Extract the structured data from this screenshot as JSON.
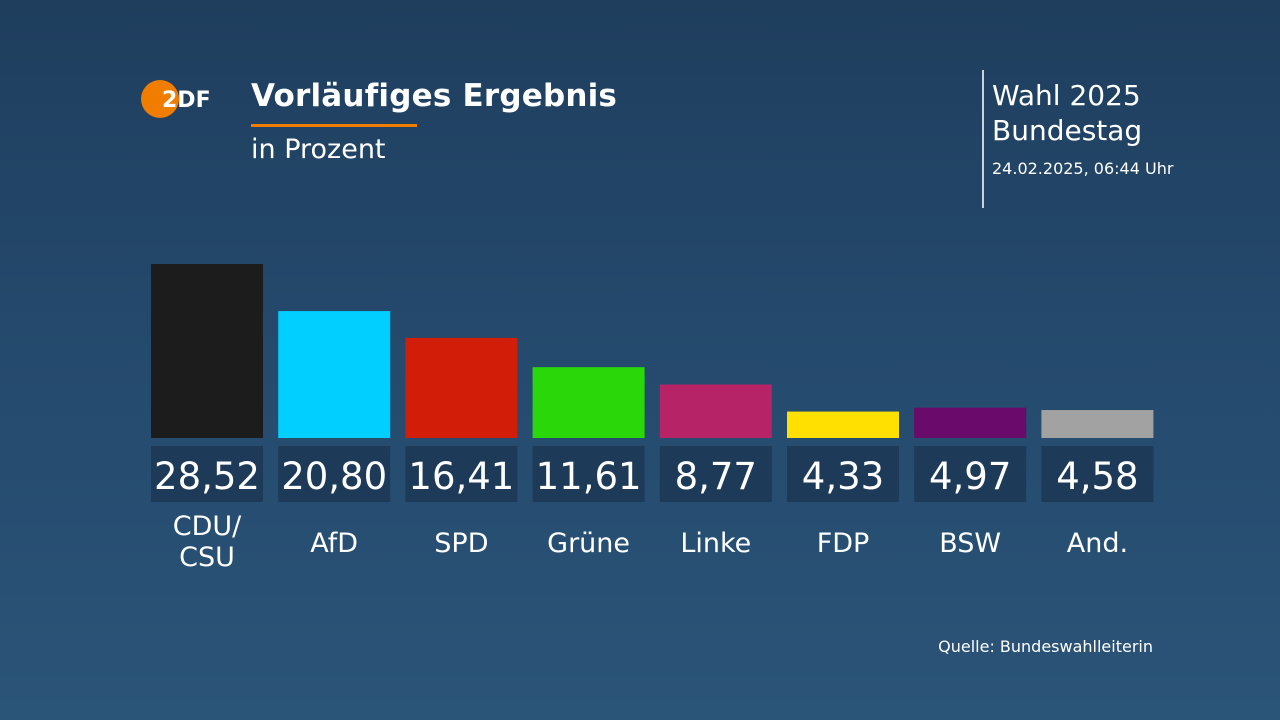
{
  "header": {
    "logo_text": "2DF",
    "title": "Vorläufiges Ergebnis",
    "subtitle": "in Prozent",
    "election_line1": "Wahl 2025",
    "election_line2": "Bundestag",
    "timestamp": "24.02.2025, 06:44 Uhr"
  },
  "footer": {
    "source": "Quelle: Bundeswahlleiterin"
  },
  "colors": {
    "accent": "#f07d00",
    "value_box": "#1d3a58"
  },
  "chart_data": {
    "type": "bar",
    "title": "Vorläufiges Ergebnis",
    "subtitle": "in Prozent",
    "categories": [
      "CDU/\nCSU",
      "AfD",
      "SPD",
      "Grüne",
      "Linke",
      "FDP",
      "BSW",
      "And."
    ],
    "values": [
      28.52,
      20.8,
      16.41,
      11.61,
      8.77,
      4.33,
      4.97,
      4.58
    ],
    "value_labels": [
      "28,52",
      "20,80",
      "16,41",
      "11,61",
      "8,77",
      "4,33",
      "4,97",
      "4,58"
    ],
    "colors": [
      "#1c1c1c",
      "#00cfff",
      "#d21e08",
      "#2ad80a",
      "#b62367",
      "#ffe000",
      "#6a0a6a",
      "#a2a2a2"
    ],
    "xlabel": "",
    "ylabel": "",
    "ylim": [
      0,
      28.52
    ],
    "grid": false,
    "legend": "none"
  }
}
